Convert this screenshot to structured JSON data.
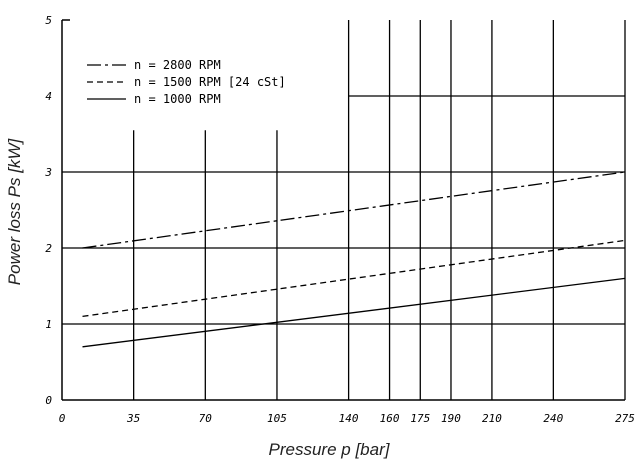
{
  "chart_data": {
    "type": "line",
    "xlabel": "Pressure p [bar]",
    "ylabel": "Power loss Ps [kW]",
    "xlim": [
      0,
      275
    ],
    "ylim": [
      0,
      5
    ],
    "x_ticks": [
      0,
      35,
      70,
      105,
      140,
      160,
      175,
      190,
      210,
      240,
      275
    ],
    "y_ticks": [
      0,
      1,
      2,
      3,
      4,
      5
    ],
    "grid": true,
    "legend_position": "top-left",
    "series": [
      {
        "name": "n = 2800 RPM",
        "style": "dash-dot",
        "x": [
          10,
          275
        ],
        "y": [
          2.0,
          3.0
        ]
      },
      {
        "name": "n = 1500 RPM [24 cSt]",
        "style": "dashed",
        "x": [
          10,
          275
        ],
        "y": [
          1.1,
          2.1
        ]
      },
      {
        "name": "n = 1000 RPM",
        "style": "solid",
        "x": [
          10,
          275
        ],
        "y": [
          0.7,
          1.6
        ]
      }
    ],
    "colors": {
      "line": "#000000",
      "axis_title": "#222222"
    }
  }
}
